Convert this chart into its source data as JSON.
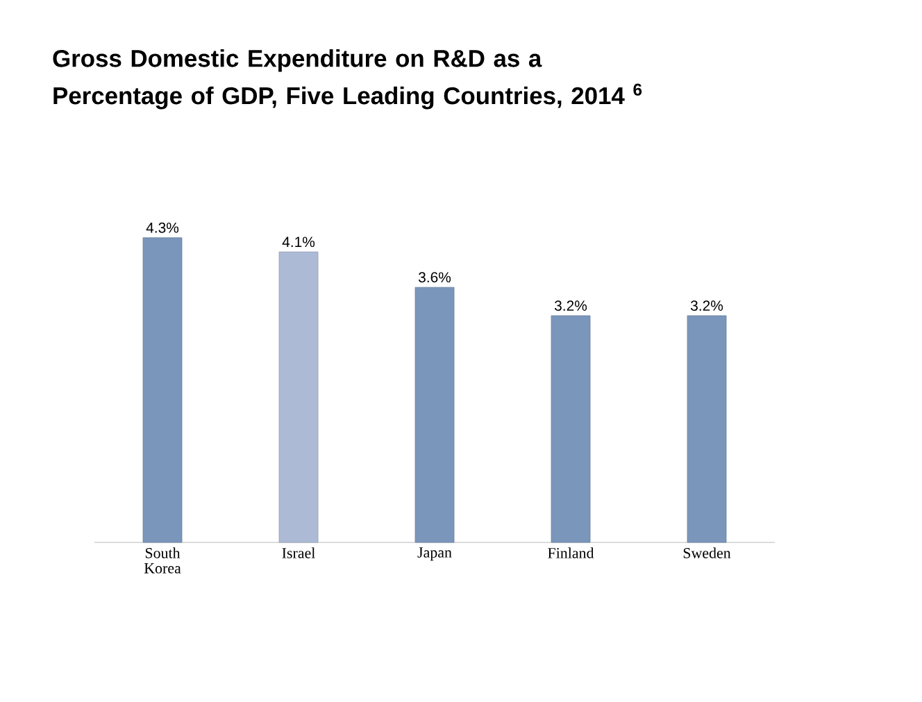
{
  "chart_data": {
    "type": "bar",
    "title": "Gross Domestic Expenditure on R&D as a Percentage of GDP, Five Leading Countries, 2014 $^{6}$",
    "categories": [
      "South Korea",
      "Israel",
      "Japan",
      "Finland",
      "Sweden"
    ],
    "values": [
      4.3,
      4.1,
      3.6,
      3.2,
      3.2
    ],
    "value_labels": [
      "4.3%",
      "4.1%",
      "3.6%",
      "3.2%",
      "3.2%"
    ],
    "colors": [
      "#7b96bb",
      "#adbad5",
      "#7b96bb",
      "#7b96bb",
      "#7b96bb"
    ]
  }
}
